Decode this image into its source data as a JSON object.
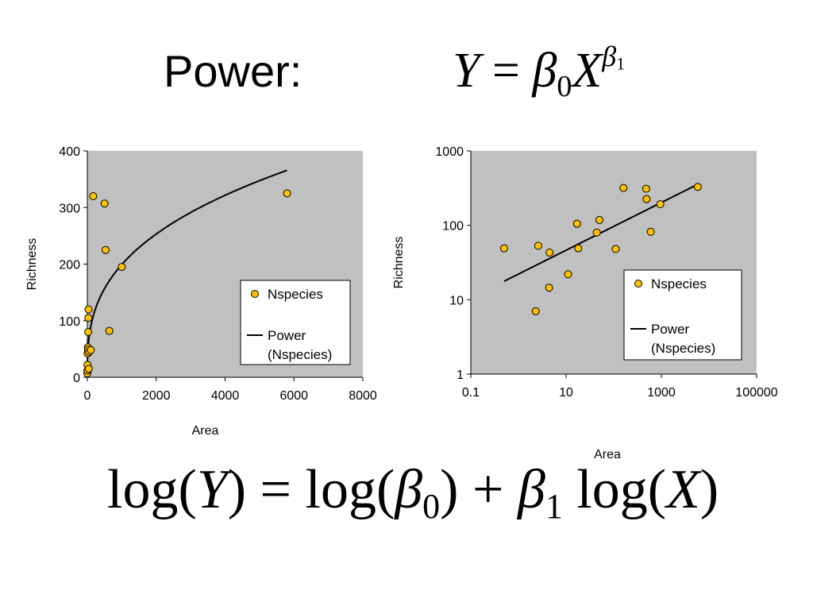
{
  "slide": {
    "title": "Power:",
    "equation_top": {
      "lhs": "Y",
      "eq": "=",
      "beta": "β",
      "beta_sub": "0",
      "x": "X",
      "exp_beta": "β",
      "exp_sub": "1"
    },
    "equation_bottom": {
      "log1": "log(",
      "y": "Y",
      "close1": ")",
      "eq": "=",
      "log2": "log(",
      "beta0": "β",
      "beta0_sub": "0",
      "close2": ")",
      "plus": "+",
      "beta1": "β",
      "beta1_sub": "1",
      "log3": "log(",
      "x": "X",
      "close3": ")"
    }
  },
  "colors": {
    "plot_bg": "#c0c0c0",
    "marker": "#ffc000",
    "marker_stroke": "#000000",
    "line": "#000000"
  },
  "chart_data": [
    {
      "type": "scatter",
      "xscale": "linear",
      "yscale": "linear",
      "xlim": [
        0,
        8000
      ],
      "ylim": [
        0,
        400
      ],
      "xticks": [
        "0",
        "2000",
        "4000",
        "6000",
        "8000"
      ],
      "yticks": [
        "0",
        "100",
        "200",
        "300",
        "400"
      ],
      "xtick_values": [
        0,
        2000,
        4000,
        6000,
        8000
      ],
      "ytick_values": [
        0,
        100,
        200,
        300,
        400
      ],
      "xlabel": "Area",
      "ylabel": "Richness",
      "legend_placement": "bottom-right inside plot",
      "series": [
        {
          "name": "Nspecies",
          "kind": "points",
          "x": [
            0.5,
            2,
            4,
            8,
            15,
            20,
            25,
            30,
            35,
            40,
            50,
            100,
            170,
            500,
            530,
            640,
            1000,
            5800
          ],
          "y": [
            7,
            12,
            22,
            42,
            53,
            49,
            80,
            105,
            120,
            15,
            45,
            48,
            320,
            307,
            225,
            82,
            195,
            325
          ]
        },
        {
          "name": "Power",
          "name_line2": "(Nspecies)",
          "kind": "fit",
          "x_range": [
            1,
            5800
          ],
          "beta0": 18.3,
          "beta1": 0.3456
        }
      ]
    },
    {
      "type": "scatter",
      "xscale": "log",
      "yscale": "log",
      "xlim": [
        0.1,
        100000
      ],
      "ylim": [
        1,
        1000
      ],
      "xticks": [
        "0.1",
        "10",
        "1000",
        "100000"
      ],
      "yticks": [
        "1",
        "10",
        "100",
        "1000"
      ],
      "xtick_values": [
        0.1,
        10,
        1000,
        100000
      ],
      "ytick_values": [
        1,
        10,
        100,
        1000
      ],
      "xlabel": "Area",
      "ylabel": "Richness",
      "legend_placement": "bottom-right inside plot",
      "series": [
        {
          "name": "Nspecies",
          "kind": "points",
          "x": [
            0.5,
            2.3,
            2.6,
            4.4,
            4.5,
            11,
            17,
            18,
            44,
            50,
            110,
            160,
            480,
            490,
            600,
            950,
            5800
          ],
          "y": [
            49,
            7,
            53,
            14.5,
            43,
            22,
            105,
            49,
            80,
            118,
            48,
            318,
            310,
            225,
            82,
            192,
            328
          ]
        },
        {
          "name": "Power",
          "name_line2": "(Nspecies)",
          "kind": "fit",
          "x_range": [
            0.5,
            5800
          ],
          "beta0": 22.1,
          "beta1": 0.3205
        }
      ]
    }
  ]
}
